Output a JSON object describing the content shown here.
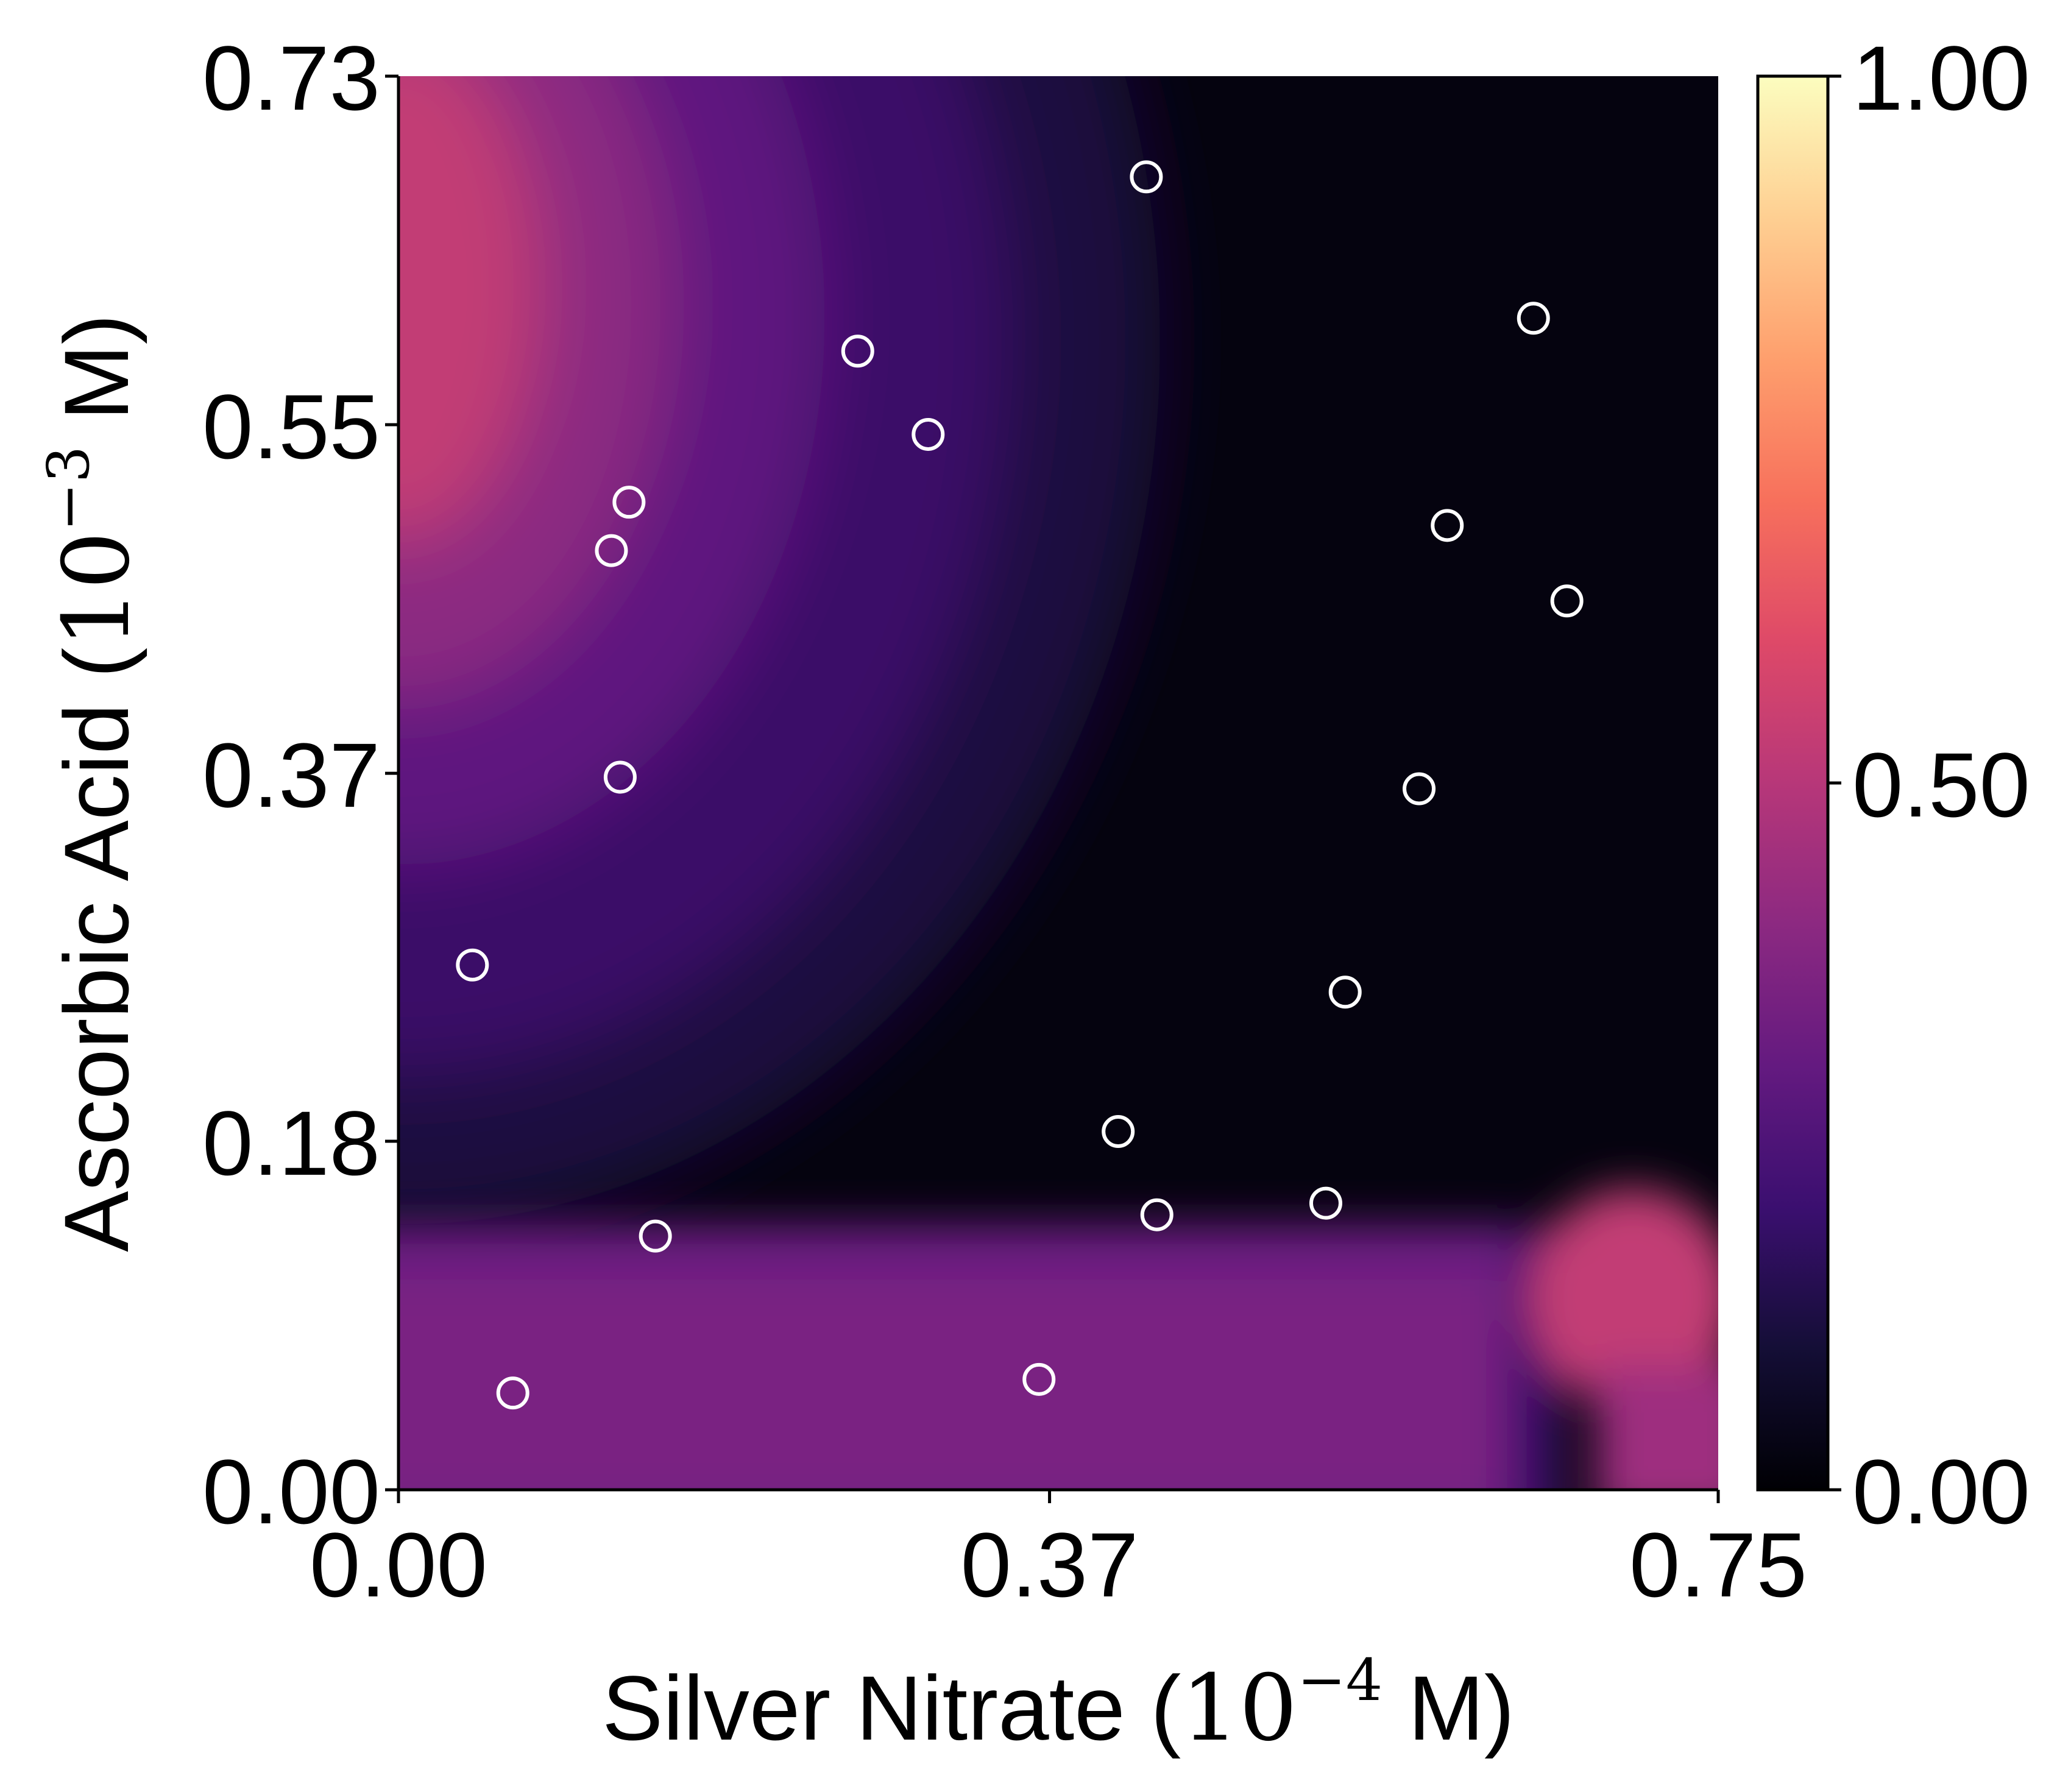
{
  "chart_data": {
    "type": "heatmap",
    "title": "",
    "xlabel": "Silver Nitrate",
    "xlabel_math": "10",
    "xlabel_exp": "−4",
    "xlabel_unit": "M)",
    "ylabel": "Ascorbic Acid",
    "ylabel_math": "10",
    "ylabel_exp": "−3",
    "ylabel_unit": "M)",
    "xlim": [
      0,
      0.75
    ],
    "ylim": [
      0,
      0.73
    ],
    "xticks": [
      0.0,
      0.37,
      0.75
    ],
    "xtick_labels": [
      "0.00",
      "0.37",
      "0.75"
    ],
    "yticks": [
      0.0,
      0.18,
      0.37,
      0.55,
      0.73
    ],
    "ytick_labels": [
      "0.00",
      "0.18",
      "0.37",
      "0.55",
      "0.73"
    ],
    "colorbar": {
      "colormap": "magma",
      "range": [
        0,
        1
      ],
      "ticks": [
        0.0,
        0.5,
        1.0
      ],
      "tick_labels": [
        "0.00",
        "0.50",
        "1.00"
      ]
    },
    "field_description": "High values near x=0, y≈0.62 fading toward right; dark region at high x; purple band for y below about 0.15; bright spot near x≈0.70, y≈0.10",
    "points": [
      {
        "x": 0.425,
        "y": 0.678
      },
      {
        "x": 0.645,
        "y": 0.605
      },
      {
        "x": 0.261,
        "y": 0.588
      },
      {
        "x": 0.301,
        "y": 0.545
      },
      {
        "x": 0.131,
        "y": 0.51
      },
      {
        "x": 0.121,
        "y": 0.485
      },
      {
        "x": 0.596,
        "y": 0.498
      },
      {
        "x": 0.664,
        "y": 0.459
      },
      {
        "x": 0.126,
        "y": 0.368
      },
      {
        "x": 0.58,
        "y": 0.362
      },
      {
        "x": 0.042,
        "y": 0.271
      },
      {
        "x": 0.538,
        "y": 0.257
      },
      {
        "x": 0.409,
        "y": 0.185
      },
      {
        "x": 0.431,
        "y": 0.142
      },
      {
        "x": 0.527,
        "y": 0.148
      },
      {
        "x": 0.146,
        "y": 0.131
      },
      {
        "x": 0.065,
        "y": 0.05
      },
      {
        "x": 0.364,
        "y": 0.057
      }
    ]
  }
}
